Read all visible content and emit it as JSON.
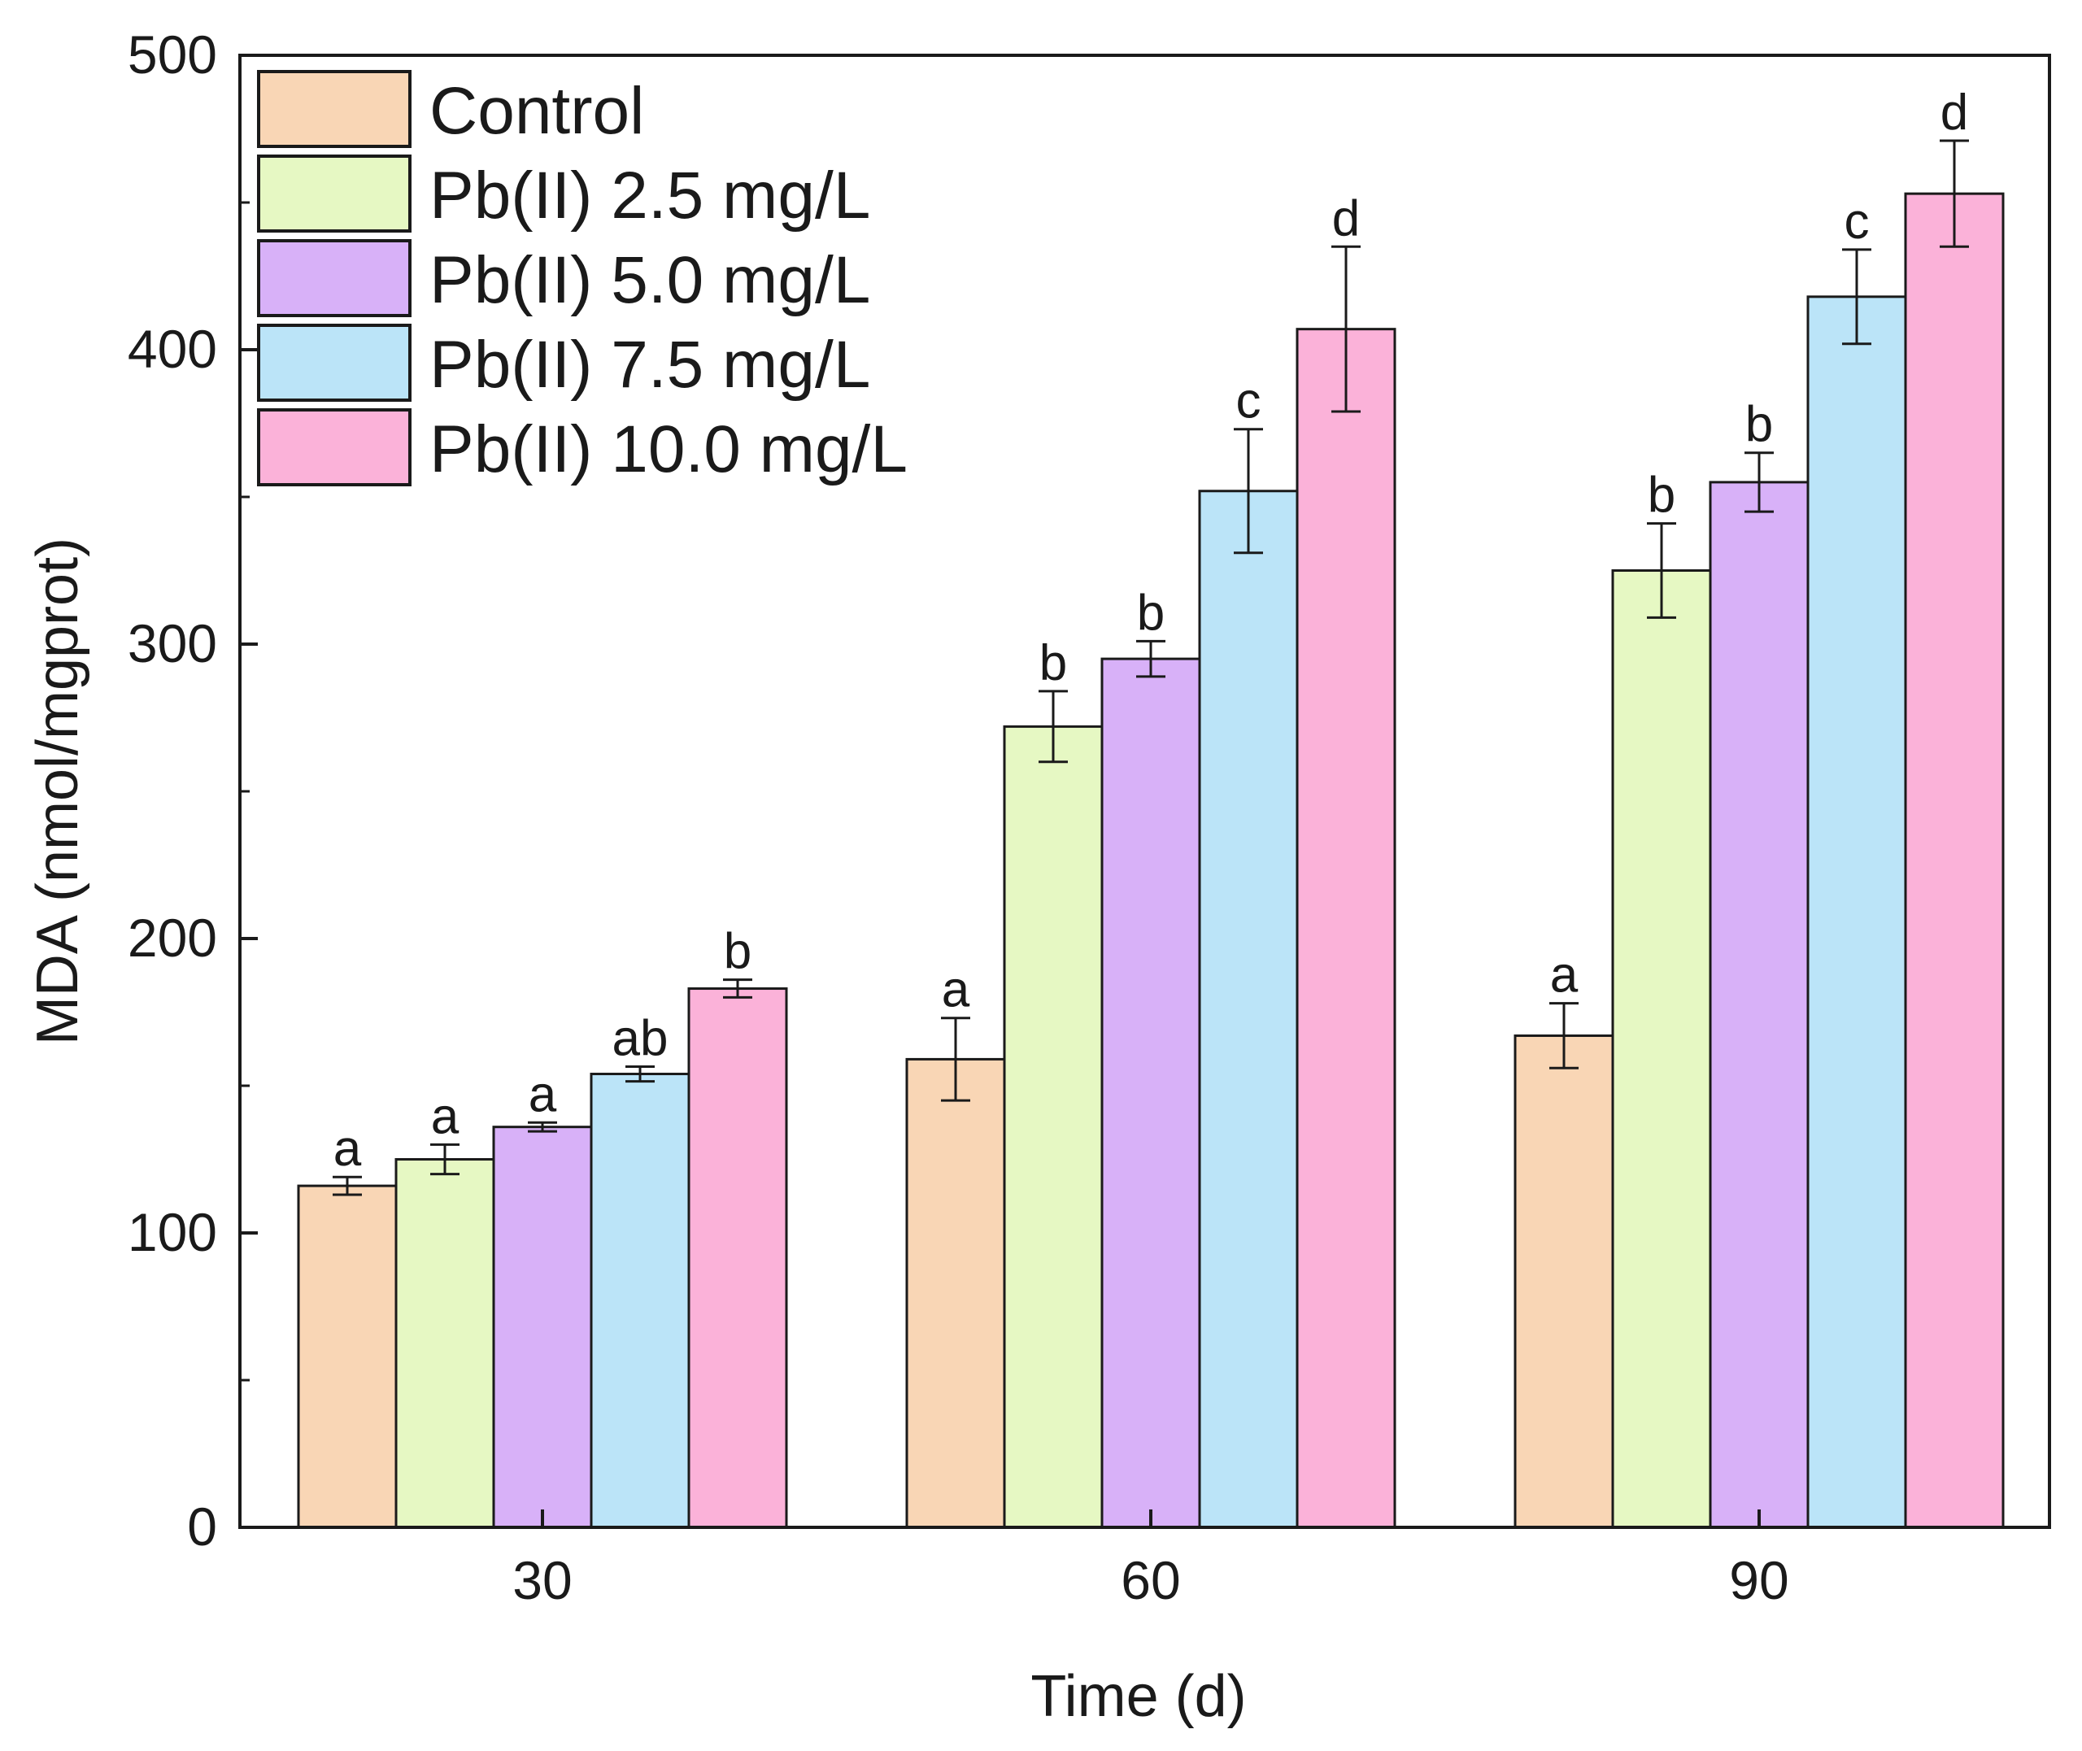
{
  "chart_data": {
    "type": "bar",
    "title": "",
    "xlabel": "Time (d)",
    "ylabel": "MDA (nmol/mgprot)",
    "ylim": [
      0,
      500
    ],
    "yticks": [
      0,
      100,
      200,
      300,
      400,
      500
    ],
    "categories": [
      "30",
      "60",
      "90"
    ],
    "legend_position": "top-left",
    "series": [
      {
        "name": "Control",
        "color": "#f9d6b5",
        "values": [
          116,
          159,
          167
        ],
        "errors": [
          3,
          14,
          11
        ],
        "labels": [
          "a",
          "a",
          "a"
        ]
      },
      {
        "name": "Pb(II) 2.5 mg/L",
        "color": "#e6f8c3",
        "values": [
          125,
          272,
          325
        ],
        "errors": [
          5,
          12,
          16
        ],
        "labels": [
          "a",
          "b",
          "b"
        ]
      },
      {
        "name": "Pb(II) 5.0 mg/L",
        "color": "#d8b1f8",
        "values": [
          136,
          295,
          355
        ],
        "errors": [
          1.5,
          6,
          10
        ],
        "labels": [
          "a",
          "b",
          "b"
        ]
      },
      {
        "name": "Pb(II) 7.5 mg/L",
        "color": "#bbe4f8",
        "values": [
          154,
          352,
          418
        ],
        "errors": [
          2.5,
          21,
          16
        ],
        "labels": [
          "ab",
          "c",
          "c"
        ]
      },
      {
        "name": "Pb(II) 10.0 mg/L",
        "color": "#fbb2d9",
        "values": [
          183,
          407,
          453
        ],
        "errors": [
          3,
          28,
          18
        ],
        "labels": [
          "b",
          "d",
          "d"
        ]
      }
    ]
  }
}
